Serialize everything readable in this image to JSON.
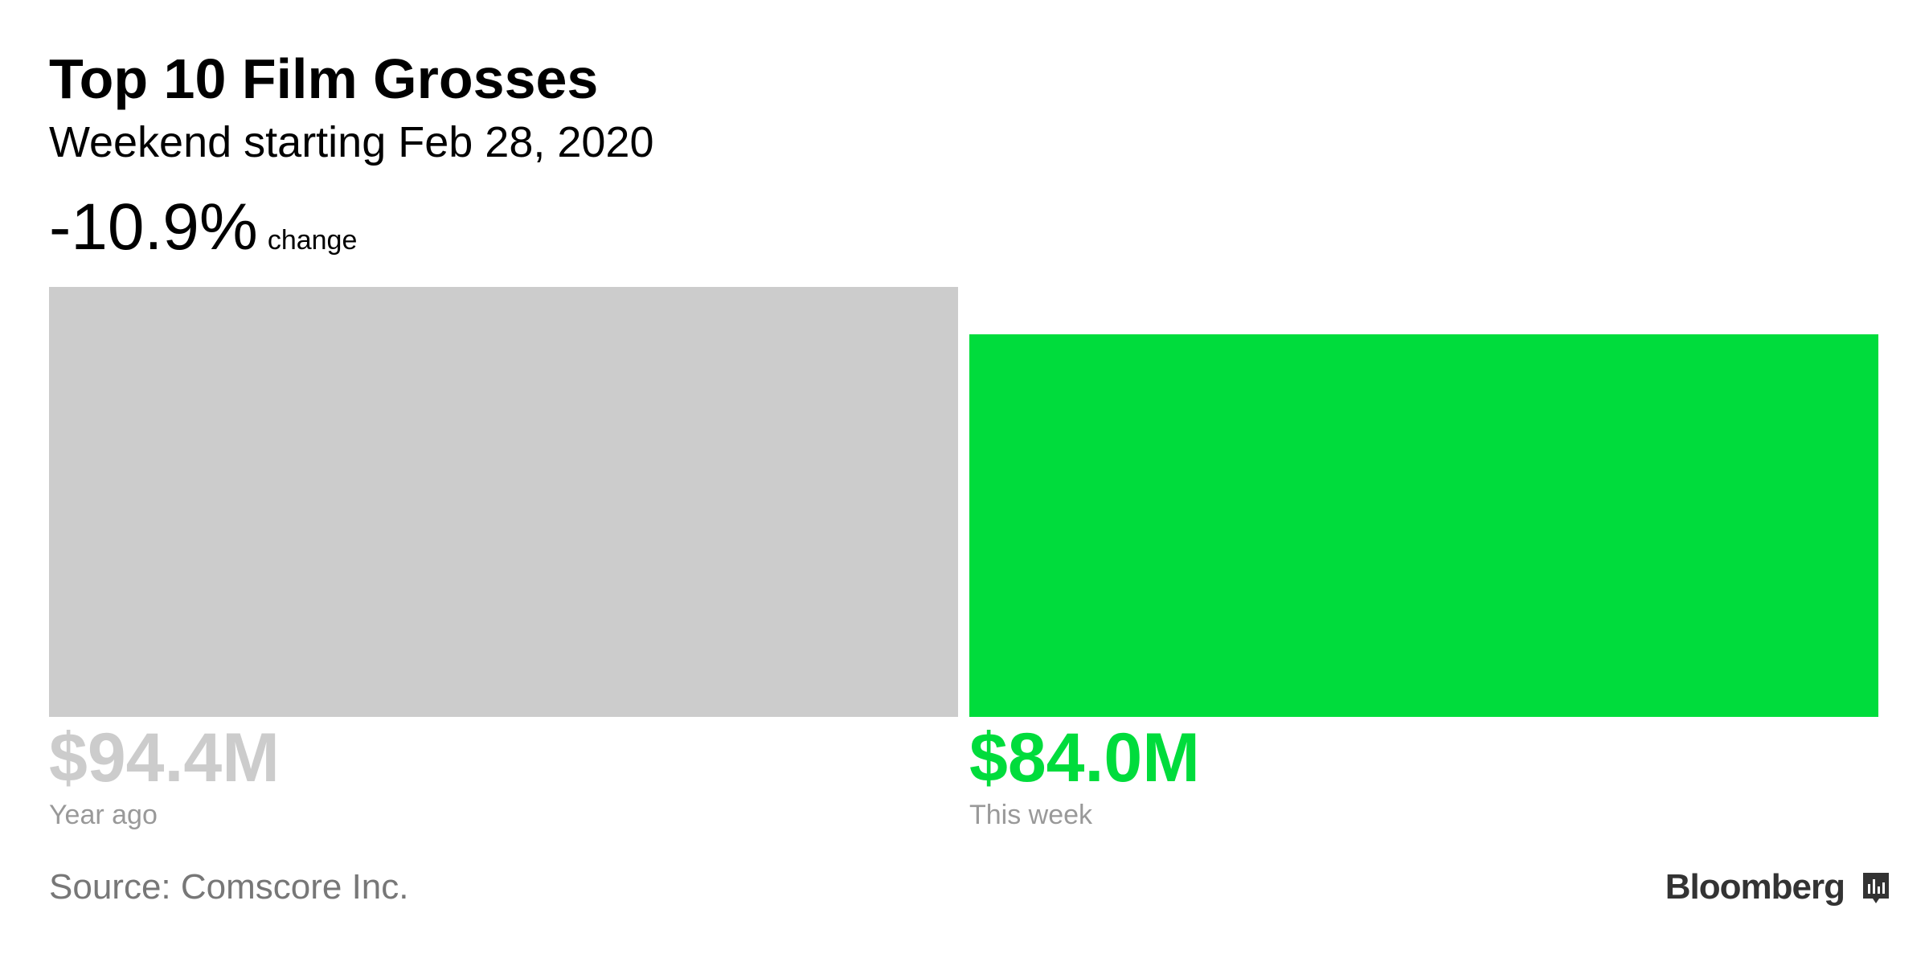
{
  "chart_data": {
    "type": "bar",
    "title": "Top 10 Film Grosses",
    "subtitle": "Weekend starting Feb 28, 2020",
    "change": "-10.9%",
    "change_note": "change",
    "categories": [
      "Year ago",
      "This week"
    ],
    "values": [
      94.4,
      84.0
    ],
    "value_labels": [
      "$94.4M",
      "$84.0M"
    ],
    "colors": [
      "#cccccc",
      "#00dc3c"
    ],
    "source": "Source: Comscore Inc.",
    "logo": "Bloomberg"
  }
}
